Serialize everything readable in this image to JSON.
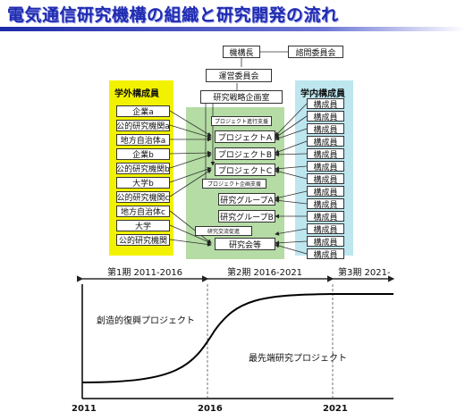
{
  "title": "電気通信研究機構の組織と研究開発の流れ",
  "top": {
    "director": "機構長",
    "advisory": "諮問委員会",
    "steering": "運営委員会",
    "strategy": "研究戦略企画室"
  },
  "external": {
    "label": "学外構成員",
    "items": [
      "企業a",
      "公的研究機関a",
      "地方自治体a",
      "企業b",
      "公的研究機関b",
      "大学b",
      "公的研究機関c",
      "地方自治体c",
      "大学",
      "公的研究機関"
    ]
  },
  "internal": {
    "label": "学内構成員",
    "items": [
      "構成員",
      "構成員",
      "構成員",
      "構成員",
      "構成員",
      "構成員",
      "構成員",
      "構成員",
      "構成員",
      "構成員",
      "構成員",
      "構成員",
      "構成員"
    ]
  },
  "center": {
    "promo": "プロジェクト進行支援",
    "projA": "プロジェクトA",
    "projB": "プロジェクトB",
    "projC": "プロジェクトC",
    "plan": "プロジェクト企画支援",
    "groupA": "研究グループA",
    "groupB": "研究グループB",
    "exchange": "研究交流促進",
    "society": "研究会等"
  },
  "timeline": {
    "phase1": "第1期 2011-2016",
    "phase2": "第2期 2016-2021",
    "phase3": "第3期 2021-",
    "label1": "創造的復興プロジェクト",
    "label2": "最先端研究プロジェクト",
    "years": [
      "2011",
      "2016",
      "2021"
    ]
  },
  "colors": {
    "title": "#1f2bb0",
    "external_bg": "#f2f200",
    "center_bg": "#b4dca4",
    "internal_bg": "#bde6ef"
  }
}
